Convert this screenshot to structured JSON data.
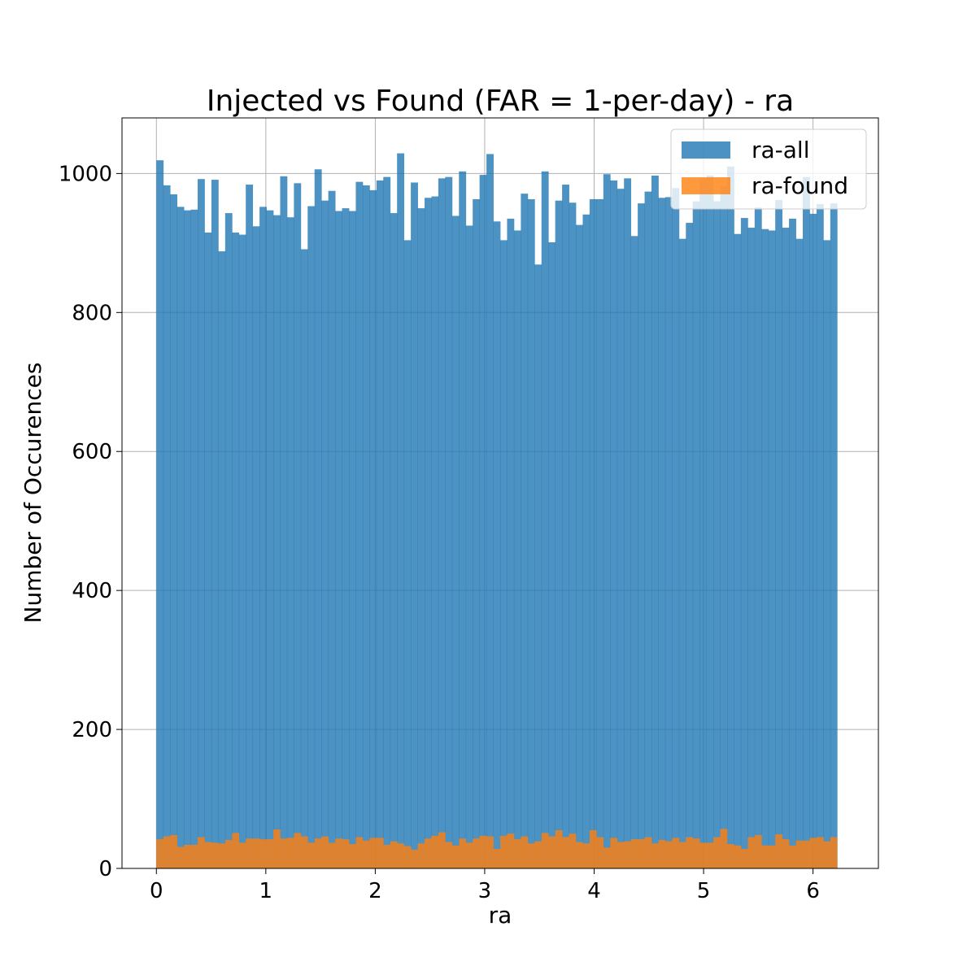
{
  "chart_data": {
    "type": "bar",
    "title": "Injected vs Found (FAR = 1-per-day) - ra",
    "xlabel": "ra",
    "ylabel": "Number of Occurences",
    "xlim": [
      -0.3142,
      6.5974
    ],
    "ylim": [
      0,
      1080
    ],
    "xticks": [
      0,
      1,
      2,
      3,
      4,
      5,
      6
    ],
    "yticks": [
      0,
      200,
      400,
      600,
      800,
      1000
    ],
    "grid": true,
    "legend_position": "top-right",
    "bin_start": 0,
    "bin_width": 0.062832,
    "series": [
      {
        "name": "ra-all",
        "color": "#1f77b4",
        "opacity": 0.8,
        "values": [
          1019,
          983,
          970,
          952,
          947,
          948,
          992,
          915,
          991,
          888,
          943,
          915,
          912,
          984,
          924,
          952,
          947,
          940,
          996,
          937,
          986,
          891,
          953,
          1006,
          961,
          975,
          946,
          950,
          946,
          988,
          983,
          976,
          990,
          995,
          943,
          1029,
          904,
          987,
          950,
          965,
          967,
          993,
          995,
          939,
          1003,
          925,
          963,
          998,
          1028,
          931,
          904,
          935,
          918,
          971,
          963,
          869,
          1003,
          901,
          961,
          984,
          958,
          926,
          941,
          963,
          963,
          999,
          990,
          978,
          993,
          910,
          957,
          974,
          997,
          965,
          966,
          979,
          906,
          929,
          960,
          992,
          997,
          960,
          982,
          1010,
          913,
          936,
          922,
          951,
          920,
          918,
          962,
          922,
          935,
          906,
          995,
          942,
          956,
          904,
          957
        ]
      },
      {
        "name": "ra-found",
        "color": "#ff7f0e",
        "opacity": 0.8,
        "values": [
          42,
          46,
          48,
          31,
          34,
          34,
          45,
          38,
          37,
          36,
          41,
          51,
          37,
          43,
          43,
          42,
          42,
          56,
          43,
          44,
          51,
          46,
          37,
          43,
          46,
          37,
          43,
          42,
          35,
          45,
          40,
          44,
          44,
          34,
          39,
          36,
          32,
          27,
          36,
          43,
          47,
          52,
          38,
          33,
          43,
          37,
          43,
          47,
          46,
          28,
          47,
          50,
          42,
          46,
          36,
          39,
          51,
          46,
          55,
          45,
          50,
          38,
          36,
          55,
          45,
          30,
          44,
          38,
          39,
          42,
          42,
          45,
          36,
          41,
          39,
          44,
          38,
          45,
          43,
          37,
          37,
          45,
          57,
          35,
          33,
          28,
          45,
          48,
          33,
          33,
          49,
          42,
          33,
          40,
          40,
          44,
          45,
          39,
          45
        ]
      }
    ]
  }
}
